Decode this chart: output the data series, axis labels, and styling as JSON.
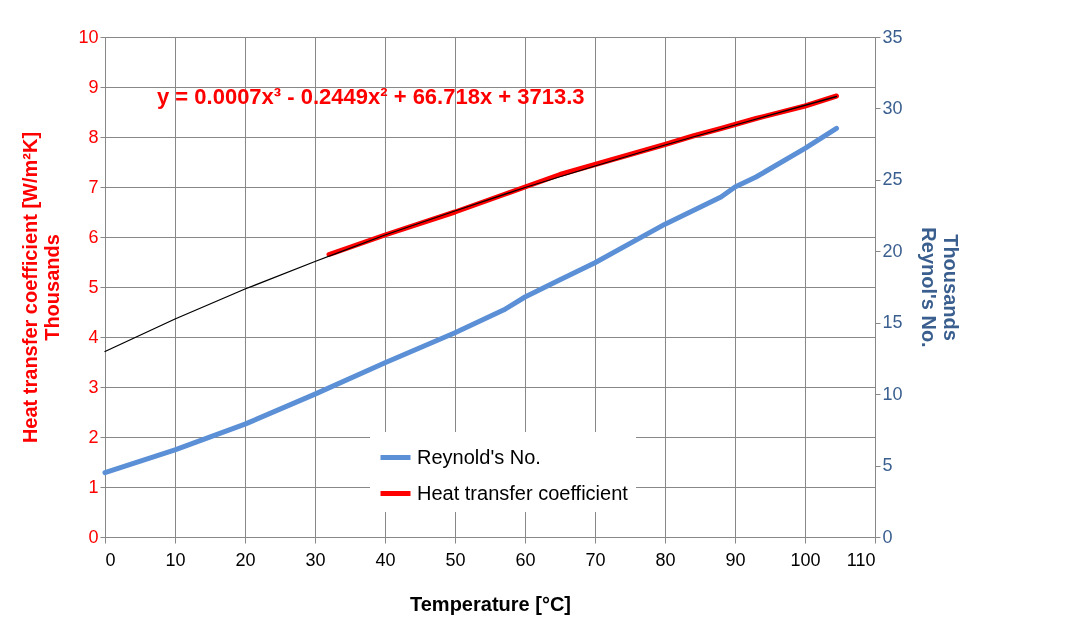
{
  "chart_data": {
    "type": "line",
    "xlabel": "Temperature [°C]",
    "ylabel": "Heat transfer coefficient  [W/m²K]",
    "y2label": "Reynol's  No.",
    "annotations": [
      "y = 0.0007x³ - 0.2449x² + 66.718x + 3713.3",
      "Thousands",
      "Thousands"
    ],
    "xlim": [
      0,
      110
    ],
    "xticks": [
      0,
      10,
      20,
      30,
      40,
      50,
      60,
      70,
      80,
      90,
      100,
      110
    ],
    "ylim": [
      0,
      10
    ],
    "yticks": [
      0,
      1,
      2,
      3,
      4,
      5,
      6,
      7,
      8,
      9,
      10
    ],
    "y2lim": [
      0,
      35
    ],
    "y2ticks": [
      0,
      5,
      10,
      15,
      20,
      25,
      30,
      35
    ],
    "grid": true,
    "legend": "bottom",
    "marker": "none",
    "line_style": "solid",
    "series": [
      {
        "name": "Reynold's No.",
        "color": "#5b8fd6",
        "axis": "y2",
        "x": [
          0,
          10,
          20,
          30,
          40,
          50,
          57,
          60,
          65,
          70,
          80,
          88,
          90,
          93,
          100,
          104.5
        ],
        "values": [
          4.5,
          6.1,
          7.9,
          10.0,
          12.2,
          14.3,
          15.9,
          16.8,
          18.0,
          19.2,
          21.9,
          23.8,
          24.5,
          25.2,
          27.2,
          28.6
        ]
      },
      {
        "name": "Heat transfer coefficient",
        "color": "#ff0000",
        "x": [
          32,
          40,
          50,
          57,
          60,
          65,
          70,
          80,
          84,
          88,
          90,
          93,
          100,
          104.5
        ],
        "values": [
          5.65,
          6.04,
          6.5,
          6.85,
          7.0,
          7.25,
          7.45,
          7.85,
          8.02,
          8.17,
          8.25,
          8.37,
          8.62,
          8.82
        ]
      },
      {
        "color": "#000000",
        "x": [
          0,
          10,
          20,
          30,
          40,
          50,
          60,
          70,
          80,
          90,
          104.5
        ],
        "values": [
          3.71,
          4.36,
          4.96,
          5.51,
          6.04,
          6.52,
          6.99,
          7.42,
          7.84,
          8.24,
          8.81
        ]
      }
    ]
  }
}
